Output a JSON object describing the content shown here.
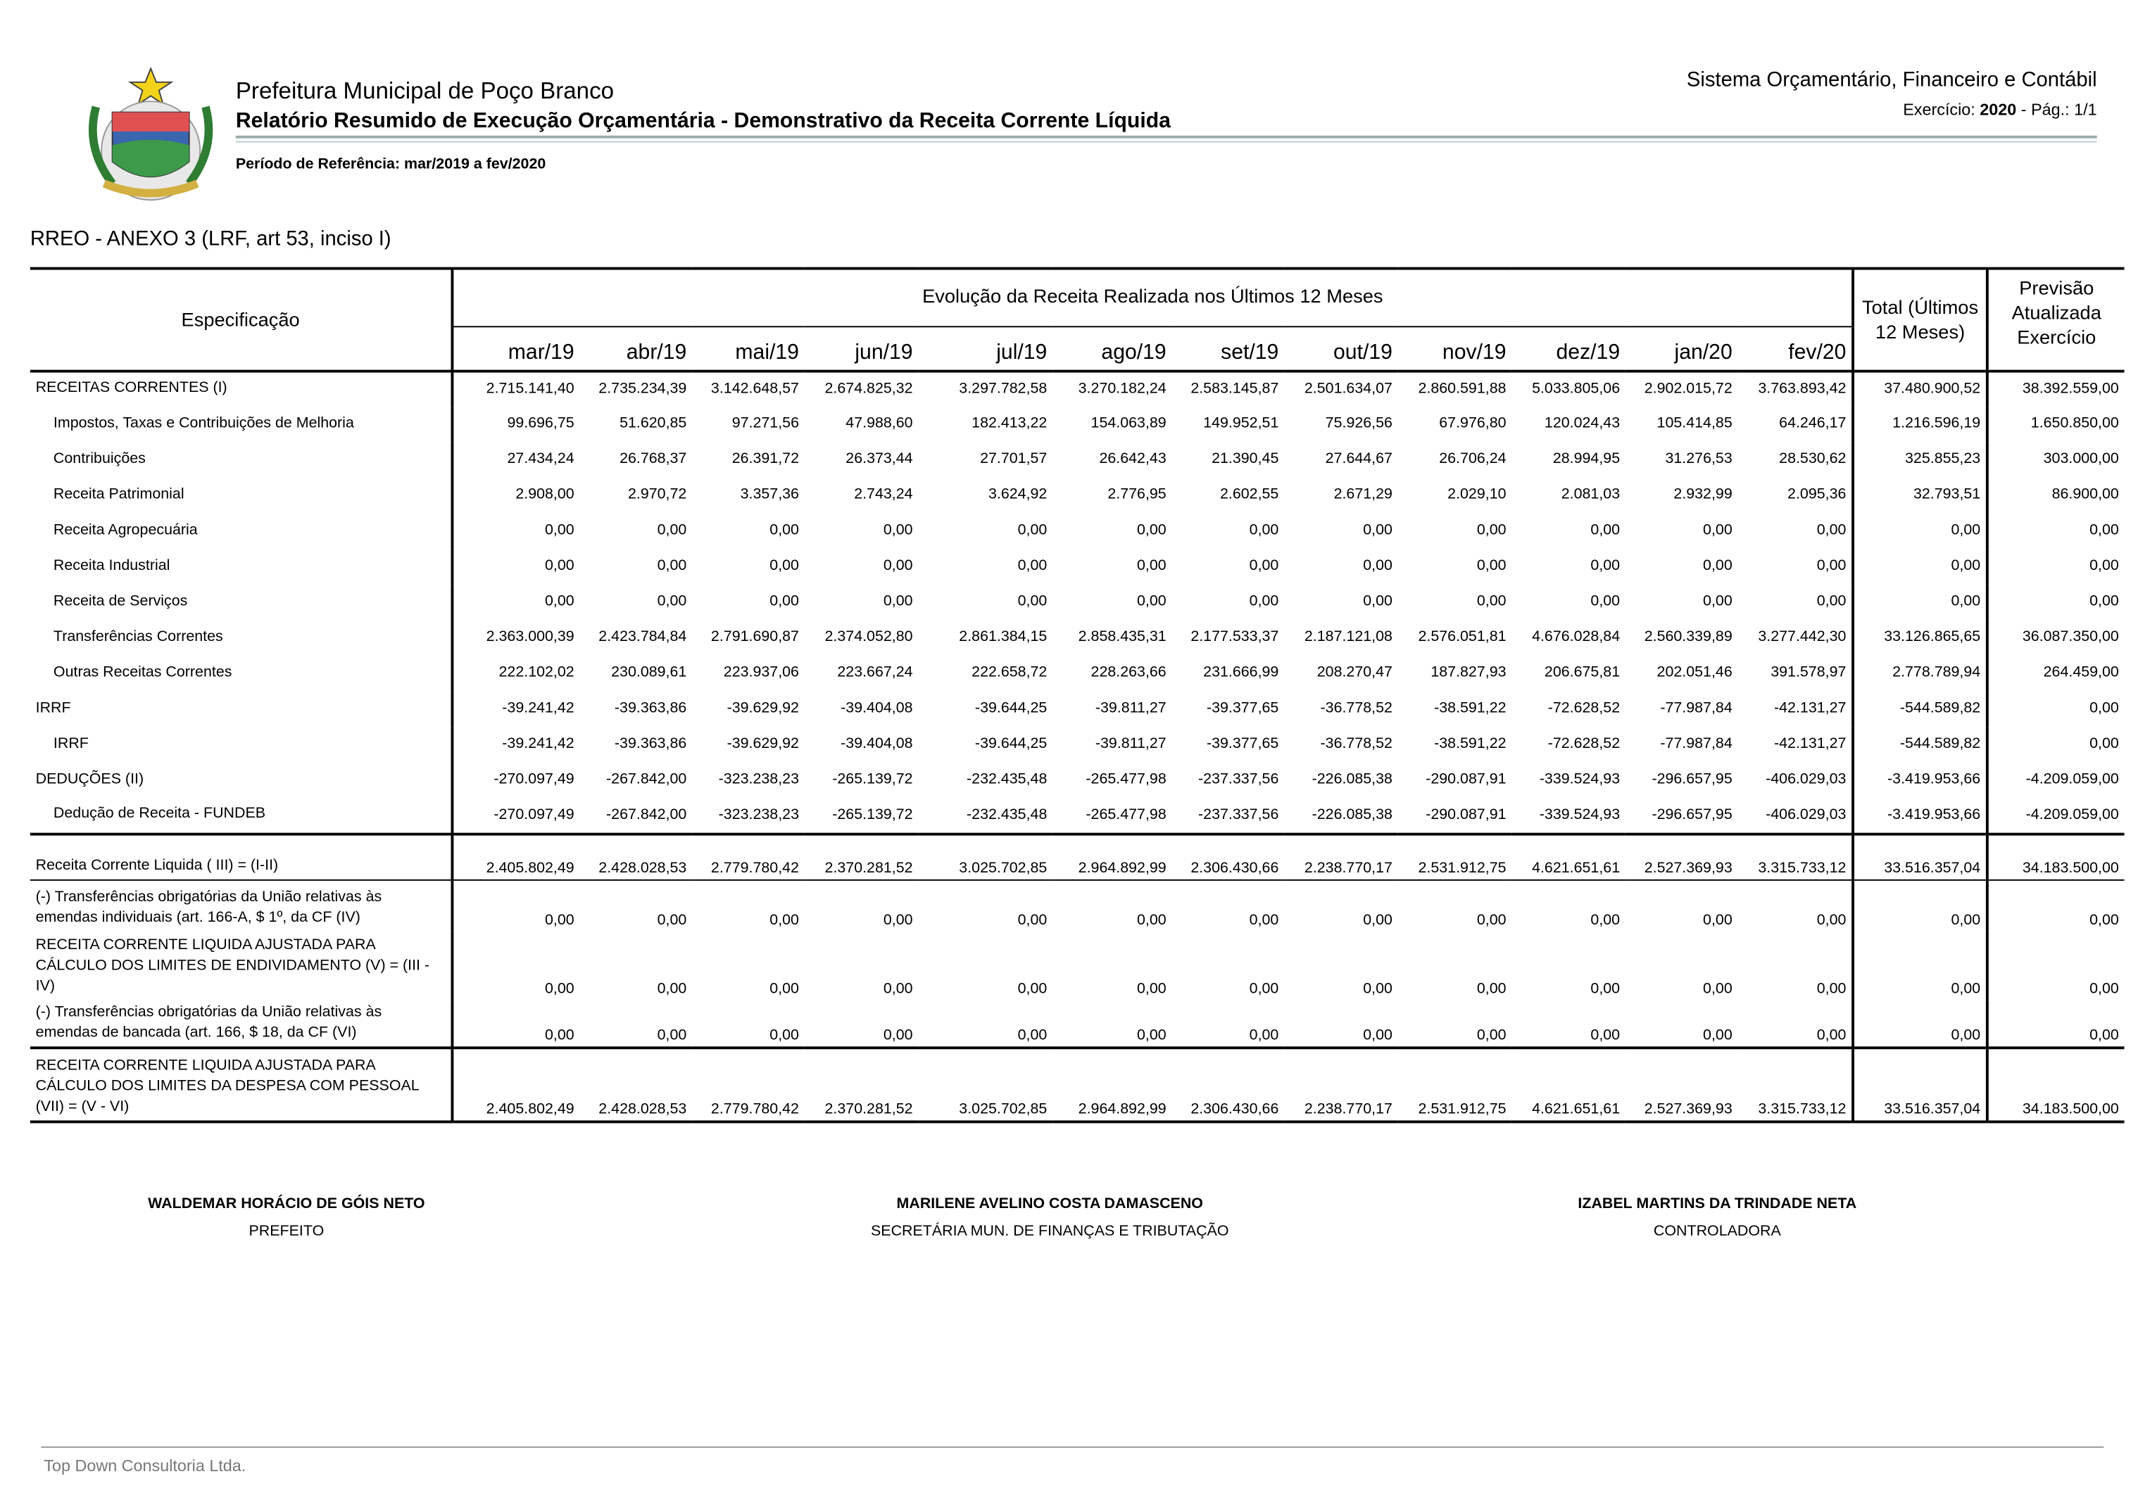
{
  "header": {
    "city": "Prefeitura Municipal de Poço Branco",
    "report_title": "Relatório Resumido de Execução Orçamentária - Demonstrativo da Receita Corrente Líquida",
    "period": "Período de Referência: mar/2019 a fev/2020",
    "system": "Sistema Orçamentário, Financeiro e Contábil",
    "exercise_label": "Exercício:",
    "exercise_year": "2020",
    "page": "- Pág.: 1/1"
  },
  "annex_title": "RREO - ANEXO 3 (LRF, art 53, inciso I)",
  "table": {
    "spec_header": "Especificação",
    "evolution_header": "Evolução da Receita Realizada nos Últimos 12 Meses",
    "months": [
      "mar/19",
      "abr/19",
      "mai/19",
      "jun/19",
      "jul/19",
      "ago/19",
      "set/19",
      "out/19",
      "nov/19",
      "dez/19",
      "jan/20",
      "fev/20"
    ],
    "total_header": "Total (Últimos 12 Meses)",
    "forecast_header": "Previsão Atualizada Exercício",
    "rows": [
      {
        "label": "RECEITAS CORRENTES (I)",
        "values": [
          "2.715.141,40",
          "2.735.234,39",
          "3.142.648,57",
          "2.674.825,32",
          "3.297.782,58",
          "3.270.182,24",
          "2.583.145,87",
          "2.501.634,07",
          "2.860.591,88",
          "5.033.805,06",
          "2.902.015,72",
          "3.763.893,42"
        ],
        "total": "37.480.900,52",
        "forecast": "38.392.559,00"
      },
      {
        "label": "Impostos, Taxas e Contribuições de Melhoria",
        "values": [
          "99.696,75",
          "51.620,85",
          "97.271,56",
          "47.988,60",
          "182.413,22",
          "154.063,89",
          "149.952,51",
          "75.926,56",
          "67.976,80",
          "120.024,43",
          "105.414,85",
          "64.246,17"
        ],
        "total": "1.216.596,19",
        "forecast": "1.650.850,00"
      },
      {
        "label": "Contribuições",
        "values": [
          "27.434,24",
          "26.768,37",
          "26.391,72",
          "26.373,44",
          "27.701,57",
          "26.642,43",
          "21.390,45",
          "27.644,67",
          "26.706,24",
          "28.994,95",
          "31.276,53",
          "28.530,62"
        ],
        "total": "325.855,23",
        "forecast": "303.000,00"
      },
      {
        "label": "Receita Patrimonial",
        "values": [
          "2.908,00",
          "2.970,72",
          "3.357,36",
          "2.743,24",
          "3.624,92",
          "2.776,95",
          "2.602,55",
          "2.671,29",
          "2.029,10",
          "2.081,03",
          "2.932,99",
          "2.095,36"
        ],
        "total": "32.793,51",
        "forecast": "86.900,00"
      },
      {
        "label": "Receita Agropecuária",
        "values": [
          "0,00",
          "0,00",
          "0,00",
          "0,00",
          "0,00",
          "0,00",
          "0,00",
          "0,00",
          "0,00",
          "0,00",
          "0,00",
          "0,00"
        ],
        "total": "0,00",
        "forecast": "0,00"
      },
      {
        "label": "Receita Industrial",
        "values": [
          "0,00",
          "0,00",
          "0,00",
          "0,00",
          "0,00",
          "0,00",
          "0,00",
          "0,00",
          "0,00",
          "0,00",
          "0,00",
          "0,00"
        ],
        "total": "0,00",
        "forecast": "0,00"
      },
      {
        "label": "Receita de Serviços",
        "values": [
          "0,00",
          "0,00",
          "0,00",
          "0,00",
          "0,00",
          "0,00",
          "0,00",
          "0,00",
          "0,00",
          "0,00",
          "0,00",
          "0,00"
        ],
        "total": "0,00",
        "forecast": "0,00"
      },
      {
        "label": "Transferências Correntes",
        "values": [
          "2.363.000,39",
          "2.423.784,84",
          "2.791.690,87",
          "2.374.052,80",
          "2.861.384,15",
          "2.858.435,31",
          "2.177.533,37",
          "2.187.121,08",
          "2.576.051,81",
          "4.676.028,84",
          "2.560.339,89",
          "3.277.442,30"
        ],
        "total": "33.126.865,65",
        "forecast": "36.087.350,00"
      },
      {
        "label": "Outras Receitas Correntes",
        "values": [
          "222.102,02",
          "230.089,61",
          "223.937,06",
          "223.667,24",
          "222.658,72",
          "228.263,66",
          "231.666,99",
          "208.270,47",
          "187.827,93",
          "206.675,81",
          "202.051,46",
          "391.578,97"
        ],
        "total": "2.778.789,94",
        "forecast": "264.459,00"
      },
      {
        "label": "IRRF",
        "values": [
          "-39.241,42",
          "-39.363,86",
          "-39.629,92",
          "-39.404,08",
          "-39.644,25",
          "-39.811,27",
          "-39.377,65",
          "-36.778,52",
          "-38.591,22",
          "-72.628,52",
          "-77.987,84",
          "-42.131,27"
        ],
        "total": "-544.589,82",
        "forecast": "0,00"
      },
      {
        "label": "IRRF",
        "values": [
          "-39.241,42",
          "-39.363,86",
          "-39.629,92",
          "-39.404,08",
          "-39.644,25",
          "-39.811,27",
          "-39.377,65",
          "-36.778,52",
          "-38.591,22",
          "-72.628,52",
          "-77.987,84",
          "-42.131,27"
        ],
        "total": "-544.589,82",
        "forecast": "0,00"
      },
      {
        "label": "DEDUÇÕES (II)",
        "values": [
          "-270.097,49",
          "-267.842,00",
          "-323.238,23",
          "-265.139,72",
          "-232.435,48",
          "-265.477,98",
          "-237.337,56",
          "-226.085,38",
          "-290.087,91",
          "-339.524,93",
          "-296.657,95",
          "-406.029,03"
        ],
        "total": "-3.419.953,66",
        "forecast": "-4.209.059,00"
      },
      {
        "label": "Dedução de Receita - FUNDEB",
        "values": [
          "-270.097,49",
          "-267.842,00",
          "-323.238,23",
          "-265.139,72",
          "-232.435,48",
          "-265.477,98",
          "-237.337,56",
          "-226.085,38",
          "-290.087,91",
          "-339.524,93",
          "-296.657,95",
          "-406.029,03"
        ],
        "total": "-3.419.953,66",
        "forecast": "-4.209.059,00"
      },
      {
        "label": "Receita Corrente Liquida ( III) = (I-II)",
        "values": [
          "2.405.802,49",
          "2.428.028,53",
          "2.779.780,42",
          "2.370.281,52",
          "3.025.702,85",
          "2.964.892,99",
          "2.306.430,66",
          "2.238.770,17",
          "2.531.912,75",
          "4.621.651,61",
          "2.527.369,93",
          "3.315.733,12"
        ],
        "total": "33.516.357,04",
        "forecast": "34.183.500,00"
      },
      {
        "label": "(-) Transferências obrigatórias da União relativas às emendas individuais (art. 166-A, $ 1º, da CF (IV)",
        "values": [
          "0,00",
          "0,00",
          "0,00",
          "0,00",
          "0,00",
          "0,00",
          "0,00",
          "0,00",
          "0,00",
          "0,00",
          "0,00",
          "0,00"
        ],
        "total": "0,00",
        "forecast": "0,00"
      },
      {
        "label": "RECEITA CORRENTE LIQUIDA AJUSTADA PARA CÁLCULO DOS LIMITES DE ENDIVIDAMENTO (V) = (III - IV)",
        "values": [
          "0,00",
          "0,00",
          "0,00",
          "0,00",
          "0,00",
          "0,00",
          "0,00",
          "0,00",
          "0,00",
          "0,00",
          "0,00",
          "0,00"
        ],
        "total": "0,00",
        "forecast": "0,00"
      },
      {
        "label": "(-) Transferências obrigatórias da União relativas às emendas de bancada (art. 166, $ 18, da CF (VI)",
        "values": [
          "0,00",
          "0,00",
          "0,00",
          "0,00",
          "0,00",
          "0,00",
          "0,00",
          "0,00",
          "0,00",
          "0,00",
          "0,00",
          "0,00"
        ],
        "total": "0,00",
        "forecast": "0,00"
      },
      {
        "label": "RECEITA CORRENTE LIQUIDA AJUSTADA PARA CÁLCULO DOS LIMITES DA DESPESA COM PESSOAL (VII) = (V - VI)",
        "values": [
          "2.405.802,49",
          "2.428.028,53",
          "2.779.780,42",
          "2.370.281,52",
          "3.025.702,85",
          "2.964.892,99",
          "2.306.430,66",
          "2.238.770,17",
          "2.531.912,75",
          "4.621.651,61",
          "2.527.369,93",
          "3.315.733,12"
        ],
        "total": "33.516.357,04",
        "forecast": "34.183.500,00"
      }
    ]
  },
  "signatures": [
    {
      "name": "WALDEMAR HORÁCIO DE GÓIS NETO",
      "role": "PREFEITO"
    },
    {
      "name": "MARILENE AVELINO COSTA DAMASCENO",
      "role": "SECRETÁRIA MUN. DE FINANÇAS E TRIBUTAÇÃO"
    },
    {
      "name": "IZABEL MARTINS DA TRINDADE NETA",
      "role": "CONTROLADORA"
    }
  ],
  "footer": "Top Down Consultoria Ltda."
}
